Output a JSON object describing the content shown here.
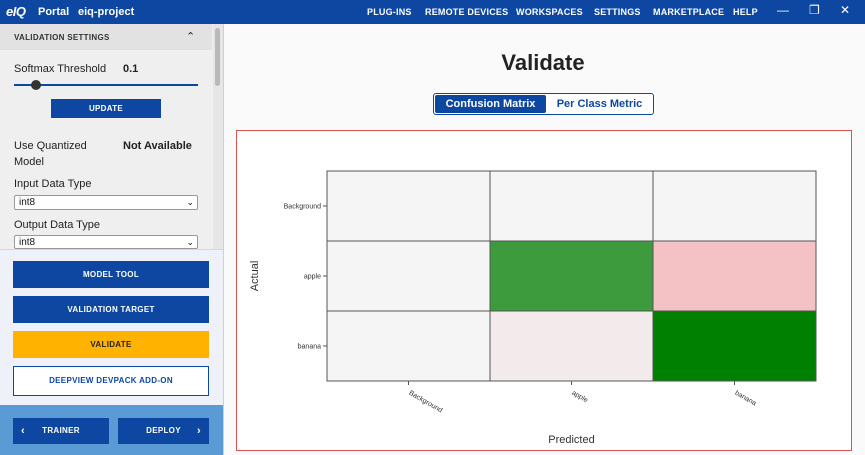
{
  "topbar": {
    "logo": "eIQ",
    "portal": "Portal",
    "project": "eiq-project",
    "nav": [
      "PLUG-INS",
      "REMOTE DEVICES",
      "WORKSPACES",
      "SETTINGS",
      "MARKETPLACE",
      "HELP"
    ],
    "window_controls": [
      "minimize-icon",
      "restore-icon",
      "close-icon"
    ]
  },
  "sidebar": {
    "section_title": "VALIDATION SETTINGS",
    "softmax_label": "Softmax Threshold",
    "softmax_value": "0.1",
    "softmax_level": 0.1,
    "update_label": "UPDATE",
    "quantized_label_line1": "Use Quantized",
    "quantized_label_line2": "Model",
    "quantized_value": "Not Available",
    "input_type_label": "Input Data Type",
    "input_type_value": "int8",
    "output_type_label": "Output Data Type",
    "output_type_value": "int8",
    "model_tool_label": "MODEL TOOL",
    "validation_target_label": "VALIDATION TARGET",
    "validate_label": "VALIDATE",
    "deepview_label": "DEEPVIEW DEVPACK ADD-ON",
    "trainer_label": "TRAINER",
    "deploy_label": "DEPLOY",
    "accent": "#0d47a1",
    "validate_color": "#ffb300"
  },
  "main": {
    "title": "Validate",
    "tab_confusion": "Confusion Matrix",
    "tab_per_class": "Per Class Metric"
  },
  "chart_data": {
    "type": "heatmap",
    "rows": [
      "Background",
      "apple",
      "banana"
    ],
    "columns": [
      "Background",
      "apple",
      "banana"
    ],
    "cell_colors": [
      [
        "#f5f5f5",
        "#f5f5f5",
        "#f5f5f5"
      ],
      [
        "#f5f5f5",
        "#3d9b3d",
        "#f4c2c4"
      ],
      [
        "#f5f5f5",
        "#f3eaeb",
        "#008000"
      ]
    ],
    "xlabel": "Predicted",
    "ylabel": "Actual"
  }
}
